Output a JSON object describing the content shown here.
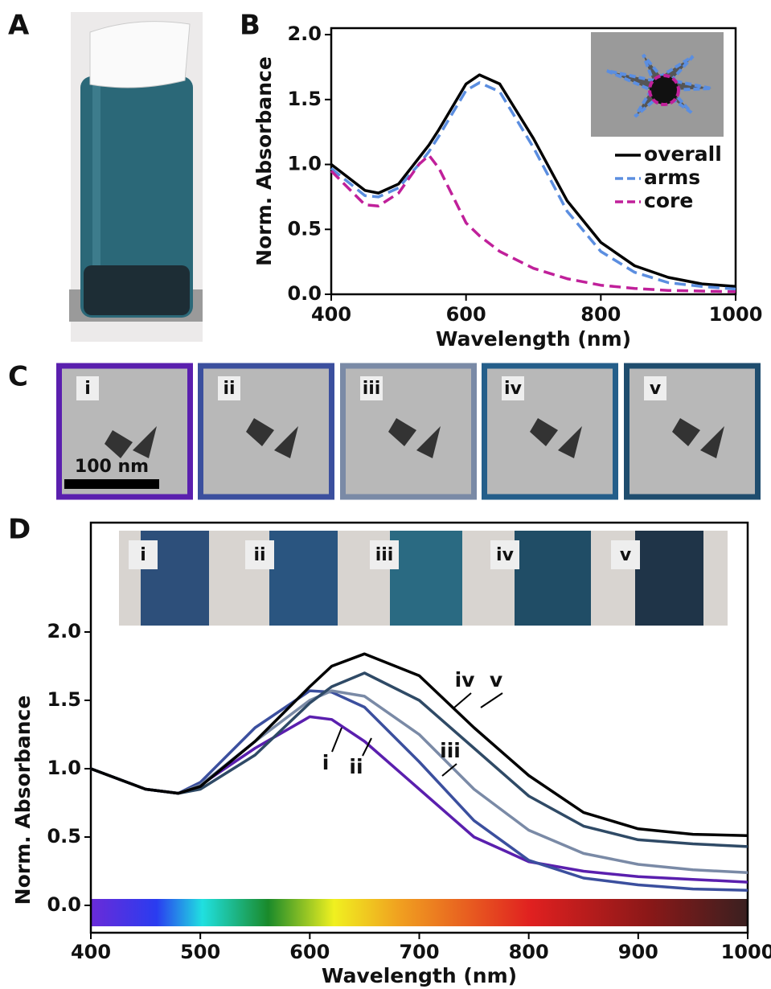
{
  "panels": [
    "A",
    "B",
    "C",
    "D"
  ],
  "tem": {
    "labels": [
      "i",
      "ii",
      "iii",
      "iv",
      "v"
    ],
    "scale_bar": "100 nm"
  },
  "cuvettes": {
    "labels": [
      "i",
      "ii",
      "iii",
      "iv",
      "v"
    ]
  },
  "chart_data": [
    {
      "type": "line",
      "xlabel": "Wavelength (nm)",
      "ylabel": "Norm. Absorbance",
      "x": [
        400,
        450,
        470,
        500,
        530,
        545,
        560,
        600,
        620,
        650,
        700,
        750,
        800,
        850,
        900,
        950,
        1000
      ],
      "series": [
        {
          "name": "overall",
          "color": "#000000",
          "style": "solid",
          "values": [
            1.0,
            0.8,
            0.78,
            0.85,
            1.05,
            1.15,
            1.27,
            1.62,
            1.69,
            1.62,
            1.2,
            0.72,
            0.4,
            0.22,
            0.13,
            0.08,
            0.06
          ]
        },
        {
          "name": "arms",
          "color": "#5b8ee0",
          "style": "dashed",
          "values": [
            0.97,
            0.76,
            0.75,
            0.82,
            1.0,
            1.1,
            1.22,
            1.57,
            1.63,
            1.56,
            1.13,
            0.64,
            0.33,
            0.17,
            0.09,
            0.06,
            0.04
          ]
        },
        {
          "name": "core",
          "color": "#c0209a",
          "style": "dashed",
          "values": [
            0.95,
            0.69,
            0.68,
            0.78,
            1.0,
            1.07,
            0.97,
            0.55,
            0.45,
            0.33,
            0.2,
            0.12,
            0.07,
            0.045,
            0.03,
            0.025,
            0.02
          ]
        }
      ],
      "xlim": [
        400,
        1000
      ],
      "xticks": [
        400,
        600,
        800,
        1000
      ],
      "ylim": [
        0,
        2.05
      ],
      "yticks": [
        {
          "value": 0,
          "label": "0.0"
        },
        0.5,
        {
          "value": 1,
          "label": "1.0"
        },
        1.5,
        {
          "value": 2,
          "label": "2.0"
        }
      ],
      "legend": "upper right"
    },
    {
      "type": "line",
      "xlabel": "Wavelength (nm)",
      "ylabel": "Norm. Absorbance",
      "x": [
        400,
        450,
        480,
        500,
        550,
        600,
        620,
        650,
        700,
        750,
        800,
        850,
        900,
        950,
        1000
      ],
      "series": [
        {
          "name": "i",
          "color": "#5a1fae",
          "style": "solid",
          "values": [
            1.0,
            0.85,
            0.82,
            0.88,
            1.15,
            1.38,
            1.36,
            1.2,
            0.85,
            0.5,
            0.32,
            0.25,
            0.21,
            0.19,
            0.17
          ]
        },
        {
          "name": "ii",
          "color": "#3b4f9e",
          "style": "solid",
          "values": [
            1.0,
            0.85,
            0.82,
            0.9,
            1.3,
            1.57,
            1.56,
            1.45,
            1.05,
            0.62,
            0.33,
            0.2,
            0.15,
            0.12,
            0.11
          ]
        },
        {
          "name": "iii",
          "color": "#7a8aa6",
          "style": "solid",
          "values": [
            1.0,
            0.85,
            0.82,
            0.88,
            1.2,
            1.5,
            1.57,
            1.53,
            1.25,
            0.85,
            0.55,
            0.38,
            0.3,
            0.26,
            0.24
          ]
        },
        {
          "name": "iv",
          "color": "#2f4a66",
          "style": "solid",
          "values": [
            1.0,
            0.85,
            0.82,
            0.85,
            1.1,
            1.48,
            1.6,
            1.7,
            1.5,
            1.15,
            0.8,
            0.58,
            0.48,
            0.45,
            0.43
          ]
        },
        {
          "name": "v",
          "color": "#000000",
          "style": "solid",
          "values": [
            1.0,
            0.85,
            0.82,
            0.87,
            1.2,
            1.6,
            1.75,
            1.84,
            1.68,
            1.3,
            0.95,
            0.68,
            0.56,
            0.52,
            0.51
          ]
        }
      ],
      "xlim": [
        400,
        1000
      ],
      "xticks": [
        400,
        500,
        600,
        700,
        800,
        900,
        1000
      ],
      "ylim": [
        -0.2,
        2.8
      ],
      "yticks": [
        {
          "value": 0,
          "label": "0.0"
        },
        0.5,
        {
          "value": 1,
          "label": "1.0"
        },
        1.5,
        {
          "value": 2,
          "label": "2.0"
        }
      ]
    }
  ]
}
